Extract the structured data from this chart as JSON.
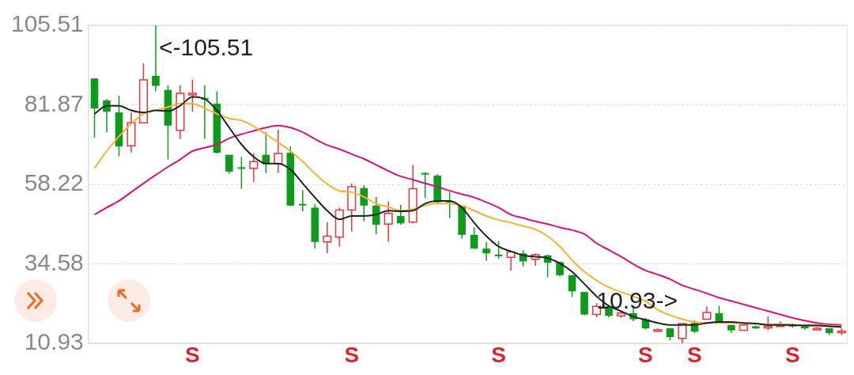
{
  "chart_data": {
    "type": "candlestick",
    "categories": [
      null,
      null,
      null,
      null,
      null,
      null,
      null,
      null,
      null,
      null,
      null,
      null,
      null,
      null,
      null,
      null,
      null,
      null,
      null,
      null,
      null,
      null,
      null,
      null,
      null,
      null,
      null,
      null,
      null,
      null,
      null,
      null,
      null,
      null,
      null,
      null,
      null,
      null,
      null,
      null,
      null,
      null,
      null,
      null,
      null,
      null,
      null,
      null,
      null,
      null,
      null,
      null,
      null,
      null,
      null,
      null,
      null,
      null,
      null,
      null,
      null,
      null
    ],
    "ohlc": [
      [
        89.7,
        89.7,
        72.1,
        80.8
      ],
      [
        83.2,
        83.6,
        73.7,
        79.8
      ],
      [
        79.6,
        84.6,
        66.6,
        69.5
      ],
      [
        69.7,
        79.6,
        67.7,
        76.5
      ],
      [
        76.5,
        94.2,
        76.5,
        89.3
      ],
      [
        90.5,
        105.51,
        85.9,
        87.5
      ],
      [
        86.3,
        87.7,
        65.6,
        75.7
      ],
      [
        74.3,
        87.7,
        71.7,
        85.3
      ],
      [
        85.2,
        89.3,
        79.8,
        85.3
      ],
      [
        83.9,
        87.7,
        71.7,
        83.8
      ],
      [
        82.2,
        85.9,
        67.4,
        67.6
      ],
      [
        67.0,
        67.0,
        61.4,
        62.0
      ],
      [
        63.3,
        66.4,
        56.9,
        63.1
      ],
      [
        63.0,
        67.4,
        58.9,
        65.0
      ],
      [
        67.0,
        73.7,
        61.6,
        64.2
      ],
      [
        64.4,
        74.5,
        61.6,
        67.4
      ],
      [
        67.6,
        69.5,
        51.9,
        51.9
      ],
      [
        52.4,
        56.5,
        50.2,
        52.0
      ],
      [
        51.3,
        52.3,
        39.1,
        41.1
      ],
      [
        41.1,
        47.0,
        37.7,
        42.8
      ],
      [
        42.5,
        51.3,
        39.7,
        50.6
      ],
      [
        50.6,
        58.5,
        44.2,
        57.5
      ],
      [
        57.1,
        57.9,
        47.2,
        51.9
      ],
      [
        51.9,
        54.5,
        43.4,
        46.2
      ],
      [
        46.4,
        53.1,
        41.1,
        49.6
      ],
      [
        48.8,
        52.1,
        46.2,
        46.6
      ],
      [
        47.0,
        64.0,
        46.6,
        56.9
      ],
      [
        61.6,
        61.8,
        54.1,
        61.3
      ],
      [
        60.8,
        61.2,
        52.5,
        52.9
      ],
      [
        53.3,
        55.9,
        48.2,
        53.2
      ],
      [
        51.9,
        51.9,
        42.1,
        43.2
      ],
      [
        43.2,
        45.4,
        39.1,
        39.1
      ],
      [
        39.1,
        41.1,
        35.5,
        37.7
      ],
      [
        37.3,
        41.3,
        36.1,
        37.2
      ],
      [
        36.5,
        38.3,
        32.6,
        38.1
      ],
      [
        37.7,
        38.7,
        33.8,
        35.3
      ],
      [
        35.9,
        37.7,
        34.0,
        37.3
      ],
      [
        37.1,
        37.3,
        30.6,
        34.9
      ],
      [
        35.1,
        35.3,
        30.8,
        31.2
      ],
      [
        31.2,
        31.3,
        24.7,
        26.4
      ],
      [
        26.2,
        26.2,
        19.3,
        19.5
      ],
      [
        19.5,
        22.9,
        18.7,
        21.9
      ],
      [
        21.9,
        21.9,
        18.7,
        19.1
      ],
      [
        19.1,
        20.7,
        18.5,
        19.9
      ],
      [
        19.9,
        21.5,
        17.5,
        18.1
      ],
      [
        18.1,
        18.5,
        15.0,
        15.4
      ],
      [
        14.8,
        15.4,
        14.4,
        15.0
      ],
      [
        15.4,
        15.6,
        11.8,
        12.8
      ],
      [
        12.4,
        16.8,
        10.93,
        16.8
      ],
      [
        17.0,
        17.8,
        14.0,
        14.4
      ],
      [
        18.1,
        21.9,
        18.1,
        20.1
      ],
      [
        19.9,
        22.1,
        17.0,
        17.0
      ],
      [
        16.4,
        16.4,
        14.0,
        14.8
      ],
      [
        14.8,
        16.4,
        14.8,
        16.4
      ],
      [
        16.0,
        16.2,
        15.2,
        15.4
      ],
      [
        15.9,
        18.9,
        14.8,
        16.0
      ],
      [
        16.3,
        17.4,
        16.0,
        16.4
      ],
      [
        16.4,
        16.8,
        15.6,
        16.0
      ],
      [
        16.0,
        16.2,
        15.0,
        15.4
      ],
      [
        15.3,
        15.8,
        15.0,
        15.4
      ],
      [
        15.4,
        15.4,
        13.4,
        14.0
      ],
      [
        14.4,
        15.4,
        13.4,
        14.6
      ]
    ],
    "colors": [
      "#0d9b1c",
      "#0d9b1c",
      "#0d9b1c",
      "#e8353b",
      "#e8353b",
      "#0d9b1c",
      "#0d9b1c",
      "#e8353b",
      "#e8353b",
      "#0d9b1c",
      "#0d9b1c",
      "#0d9b1c",
      "#0d9b1c",
      "#e8353b",
      "#0d9b1c",
      "#e8353b",
      "#0d9b1c",
      "#0d9b1c",
      "#0d9b1c",
      "#e8353b",
      "#e8353b",
      "#e8353b",
      "#0d9b1c",
      "#0d9b1c",
      "#e8353b",
      "#0d9b1c",
      "#e8353b",
      "#0d9b1c",
      "#0d9b1c",
      "#0d9b1c",
      "#0d9b1c",
      "#0d9b1c",
      "#0d9b1c",
      "#0d9b1c",
      "#e8353b",
      "#0d9b1c",
      "#e8353b",
      "#0d9b1c",
      "#0d9b1c",
      "#0d9b1c",
      "#0d9b1c",
      "#e8353b",
      "#0d9b1c",
      "#e8353b",
      "#0d9b1c",
      "#0d9b1c",
      "#e8353b",
      "#0d9b1c",
      "#e8353b",
      "#0d9b1c",
      "#e8353b",
      "#0d9b1c",
      "#0d9b1c",
      "#e8353b",
      "#0d9b1c",
      "#e8353b",
      "#e8353b",
      "#0d9b1c",
      "#0d9b1c",
      "#e8353b",
      "#0d9b1c",
      "#e8353b"
    ],
    "value_labels": [
      null,
      null,
      null,
      null,
      null,
      null,
      null,
      null,
      "S",
      null,
      null,
      null,
      null,
      null,
      null,
      null,
      null,
      null,
      null,
      null,
      null,
      "S",
      null,
      null,
      null,
      null,
      null,
      null,
      null,
      null,
      null,
      null,
      null,
      "S",
      null,
      null,
      null,
      null,
      null,
      null,
      null,
      null,
      null,
      null,
      null,
      "S",
      null,
      null,
      null,
      "S",
      null,
      null,
      null,
      null,
      null,
      null,
      null,
      "S",
      null,
      null,
      null,
      null
    ],
    "series": [
      {
        "type": "line",
        "color": "#222222",
        "values": [
          79.2,
          81.6,
          81.6,
          80.2,
          79.6,
          80.2,
          80.0,
          81.6,
          84.2,
          83.6,
          80.2,
          75.1,
          70.1,
          66.4,
          64.4,
          64.4,
          62.6,
          58.5,
          54.3,
          50.4,
          47.8,
          48.8,
          48.8,
          49.2,
          50.4,
          50.2,
          50.4,
          52.5,
          53.3,
          53.3,
          51.3,
          46.8,
          42.8,
          39.7,
          38.3,
          37.1,
          36.7,
          36.3,
          34.7,
          32.2,
          28.6,
          24.9,
          22.1,
          20.5,
          18.9,
          17.9,
          17.0,
          16.4,
          16.4,
          16.4,
          17.0,
          17.3,
          17.3,
          17.0,
          16.8,
          16.4,
          16.4,
          16.4,
          16.2,
          16.2,
          16.0,
          15.8
        ]
      },
      {
        "type": "line",
        "color": "#f5b335",
        "values": [
          63.0,
          68.1,
          72.5,
          76.2,
          79.2,
          80.2,
          81.2,
          82.2,
          82.2,
          80.8,
          79.2,
          77.8,
          77.2,
          75.5,
          73.1,
          70.7,
          68.1,
          65.0,
          61.4,
          58.3,
          56.3,
          55.9,
          54.5,
          52.5,
          51.5,
          50.4,
          50.9,
          51.9,
          52.5,
          52.5,
          51.9,
          50.4,
          48.8,
          47.6,
          46.8,
          45.8,
          44.8,
          42.8,
          39.7,
          35.7,
          32.2,
          29.6,
          27.6,
          26.2,
          24.9,
          23.5,
          20.9,
          19.3,
          18.1,
          17.3,
          17.0,
          17.0,
          17.0,
          16.8,
          16.8,
          16.6,
          16.6,
          16.4,
          16.4,
          16.4,
          16.2,
          16.0
        ]
      },
      {
        "type": "line",
        "color": "#d4127e",
        "values": [
          49.2,
          51.3,
          53.3,
          55.9,
          58.5,
          61.0,
          63.4,
          65.6,
          68.1,
          69.1,
          70.1,
          71.9,
          73.1,
          74.1,
          75.1,
          75.7,
          75.1,
          73.7,
          71.7,
          69.9,
          68.7,
          67.2,
          65.8,
          64.0,
          62.2,
          60.6,
          59.6,
          58.5,
          57.5,
          56.3,
          55.3,
          54.3,
          52.9,
          51.3,
          49.2,
          48.2,
          47.2,
          46.4,
          45.4,
          44.6,
          43.4,
          40.7,
          38.7,
          36.7,
          34.5,
          32.6,
          31.4,
          30.0,
          28.2,
          27.0,
          25.8,
          24.5,
          23.5,
          22.5,
          21.5,
          20.5,
          19.5,
          18.5,
          17.7,
          17.0,
          16.6,
          16.4
        ]
      }
    ],
    "annotations": [
      "<-105.51",
      "10.93->"
    ],
    "ylim": [
      10.93,
      105.51
    ],
    "yticks": [
      105.51,
      81.87,
      58.22,
      34.58,
      10.93
    ],
    "grid": "y",
    "legend": false,
    "marker": "none",
    "line_style": "solid",
    "tick_labels": "y"
  }
}
